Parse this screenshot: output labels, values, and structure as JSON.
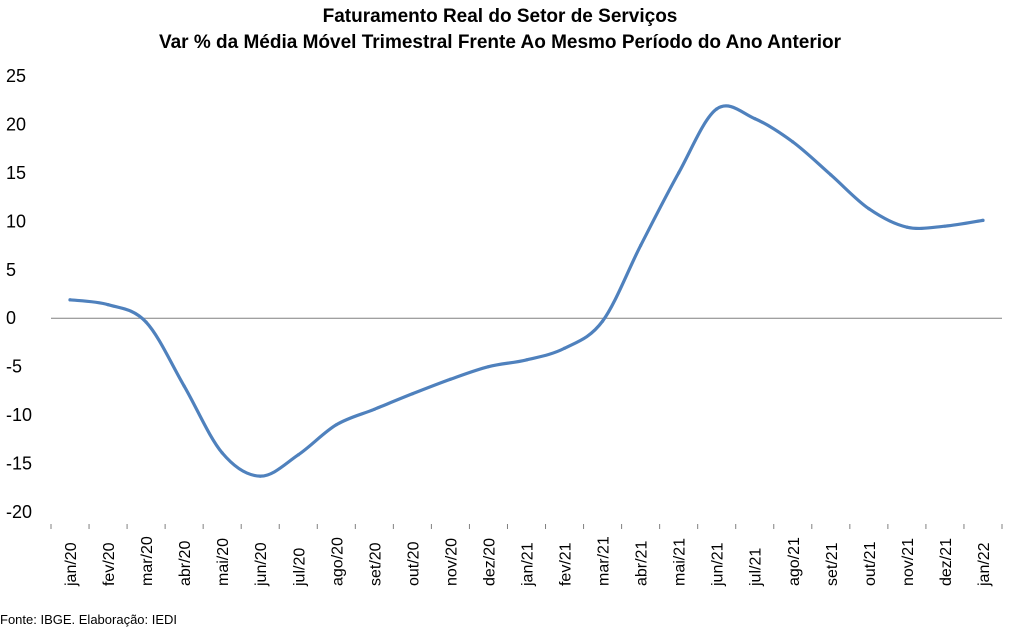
{
  "chart_data": {
    "type": "line",
    "title": "Faturamento Real do Setor de Serviços",
    "subtitle": "Var % da Média Móvel Trimestral Frente Ao Mesmo Período do Ano Anterior",
    "xlabel": "",
    "ylabel": "",
    "ylim": [
      -20,
      25
    ],
    "yticks": [
      "25",
      "20",
      "15",
      "10",
      "5",
      "0",
      "-5",
      "-10",
      "-15",
      "-20"
    ],
    "grid": false,
    "categories": [
      "jan/20",
      "fev/20",
      "mar/20",
      "abr/20",
      "mai/20",
      "jun/20",
      "jul/20",
      "ago/20",
      "set/20",
      "out/20",
      "nov/20",
      "dez/20",
      "jan/21",
      "fev/21",
      "mar/21",
      "abr/21",
      "mai/21",
      "jun/21",
      "jul/21",
      "ago/21",
      "set/21",
      "out/21",
      "nov/21",
      "dez/21",
      "jan/22"
    ],
    "series": [
      {
        "values": [
          1.9,
          1.4,
          -0.4,
          -7.0,
          -13.9,
          -16.3,
          -14.1,
          -11.0,
          -9.4,
          -7.8,
          -6.3,
          -5.0,
          -4.3,
          -3.1,
          -0.3,
          7.5,
          15.0,
          21.6,
          20.6,
          18.2,
          14.8,
          11.3,
          9.4,
          9.5,
          10.1
        ],
        "color": "#4F81BD"
      }
    ]
  },
  "footer": {
    "source": "Fonte: IBGE. Elaboração: IEDI"
  }
}
